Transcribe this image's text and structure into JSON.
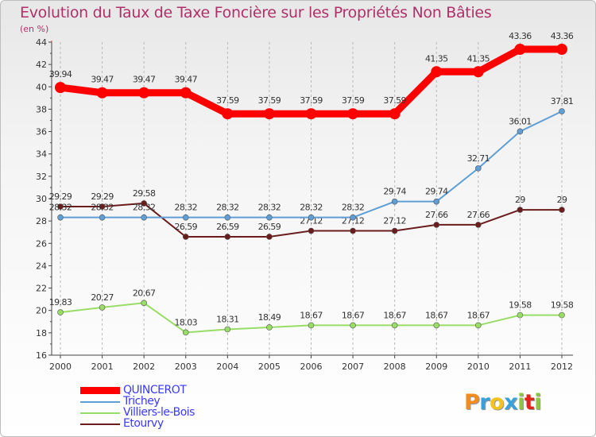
{
  "chart_data": {
    "type": "line",
    "title": "Evolution du Taux de Taxe Foncière sur les Propriétés Non Bâties",
    "subtitle": "(en %)",
    "categories": [
      "2000",
      "2001",
      "2002",
      "2003",
      "2004",
      "2005",
      "2006",
      "2007",
      "2008",
      "2009",
      "2010",
      "2011",
      "2012"
    ],
    "ylim": [
      16,
      44
    ],
    "yticks": [
      16,
      18,
      20,
      22,
      24,
      26,
      28,
      30,
      32,
      34,
      36,
      38,
      40,
      42,
      44
    ],
    "series": [
      {
        "name": "Etourvy",
        "color": "#6b1c1c",
        "values": [
          29.29,
          29.29,
          29.58,
          26.59,
          26.59,
          26.59,
          27.12,
          27.12,
          27.12,
          27.66,
          27.66,
          29,
          29
        ],
        "labels": [
          "29.29",
          "29.29",
          "29.58",
          "26.59",
          "26.59",
          "26.59",
          "27.12",
          "27.12",
          "27.12",
          "27.66",
          "27.66",
          "29",
          "29"
        ]
      },
      {
        "name": "Villiers-le-Bois",
        "color": "#99dd66",
        "values": [
          19.83,
          20.27,
          20.67,
          18.03,
          18.31,
          18.49,
          18.67,
          18.67,
          18.67,
          18.67,
          18.67,
          19.58,
          19.58
        ],
        "labels": [
          "19.83",
          "20.27",
          "20.67",
          "18.03",
          "18.31",
          "18.49",
          "18.67",
          "18.67",
          "18.67",
          "18.67",
          "18.67",
          "19.58",
          "19.58"
        ]
      },
      {
        "name": "Trichey",
        "color": "#5f9fd5",
        "values": [
          28.32,
          28.32,
          28.32,
          28.32,
          28.32,
          28.32,
          28.32,
          28.32,
          29.74,
          29.74,
          32.71,
          36.01,
          37.81
        ],
        "labels": [
          "28.32",
          "28.32",
          "28.32",
          "28.32",
          "28.32",
          "28.32",
          "28.32",
          "28.32",
          "29.74",
          "29.74",
          "32.71",
          "36.01",
          "37.81"
        ]
      },
      {
        "name": "QUINCEROT",
        "color": "#ff0000",
        "values": [
          39.94,
          39.47,
          39.47,
          39.47,
          37.59,
          37.59,
          37.59,
          37.59,
          37.59,
          41.35,
          41.35,
          43.36,
          43.36
        ],
        "labels": [
          "39.94",
          "39.47",
          "39.47",
          "39.47",
          "37.59",
          "37.59",
          "37.59",
          "37.59",
          "37.59",
          "41.35",
          "41.35",
          "43.36",
          "43.36"
        ]
      }
    ],
    "legend": [
      "QUINCEROT",
      "Trichey",
      "Villiers-le-Bois",
      "Etourvy"
    ],
    "grid": "vertical dashed"
  },
  "logo": {
    "letters": [
      "P",
      "r",
      "o",
      "x",
      "i",
      "t",
      "i"
    ],
    "colors": [
      "#f28c1e",
      "#3aa0d8",
      "#f2c21e",
      "#3aa0d8",
      "#8cc63f",
      "#e2231a",
      "#8cc63f"
    ]
  }
}
